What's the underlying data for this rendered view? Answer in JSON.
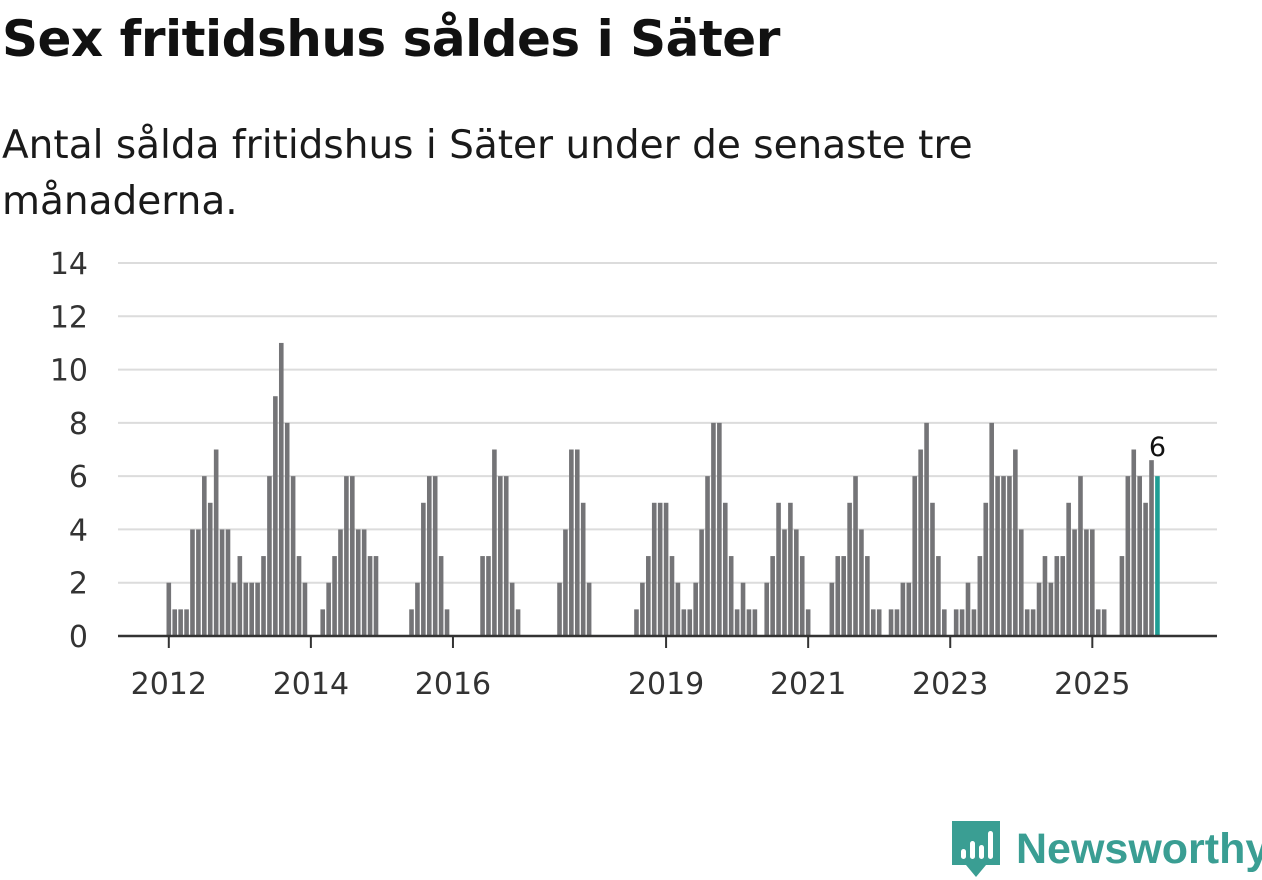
{
  "chart_data": {
    "type": "bar",
    "title": "Sex fritidshus såldes i Säter",
    "subtitle": "Antal sålda fritidshus i Säter under de senaste tre månaderna.",
    "xlabel": "",
    "ylabel": "",
    "x_ticks": [
      "2012",
      "2014",
      "2016",
      "2019",
      "2021",
      "2023",
      "2025"
    ],
    "y_ticks": [
      "0",
      "2",
      "4",
      "6",
      "8",
      "10",
      "12",
      "14"
    ],
    "ylim": [
      0,
      14
    ],
    "grid": true,
    "values": [
      2,
      1,
      1,
      1,
      4,
      4,
      6,
      5,
      7,
      4,
      4,
      2,
      3,
      2,
      2,
      2,
      3,
      6,
      9,
      11,
      8,
      6,
      3,
      2,
      0,
      0,
      1,
      2,
      3,
      4,
      6,
      6,
      4,
      4,
      3,
      3,
      0,
      0,
      0,
      0,
      0,
      1,
      2,
      5,
      6,
      6,
      3,
      1,
      0,
      0,
      0,
      0,
      0,
      3,
      3,
      7,
      6,
      6,
      2,
      1,
      0,
      0,
      0,
      0,
      0,
      0,
      2,
      4,
      7,
      7,
      5,
      2,
      0,
      0,
      0,
      0,
      0,
      0,
      0,
      1,
      2,
      3,
      5,
      5,
      5,
      3,
      2,
      1,
      1,
      2,
      4,
      6,
      8,
      8,
      5,
      3,
      1,
      2,
      1,
      1,
      0,
      2,
      3,
      5,
      4,
      5,
      4,
      3,
      1,
      0,
      0,
      0,
      2,
      3,
      3,
      5,
      6,
      4,
      3,
      1,
      1,
      0,
      1,
      1,
      2,
      2,
      6,
      7,
      8,
      5,
      3,
      1,
      0,
      1,
      1,
      2,
      1,
      3,
      5,
      8,
      6,
      6,
      6,
      7,
      4,
      1,
      1,
      2,
      3,
      2,
      3,
      3,
      5,
      4,
      6,
      4,
      4,
      1,
      1,
      0,
      0,
      3,
      6,
      7,
      6,
      5,
      6.6,
      6
    ],
    "bar_color": "#747477",
    "highlight_color": "#1f9e95",
    "highlight_label": "6"
  },
  "brand": {
    "name": "Newsworthy",
    "color": "#3a9e93"
  }
}
